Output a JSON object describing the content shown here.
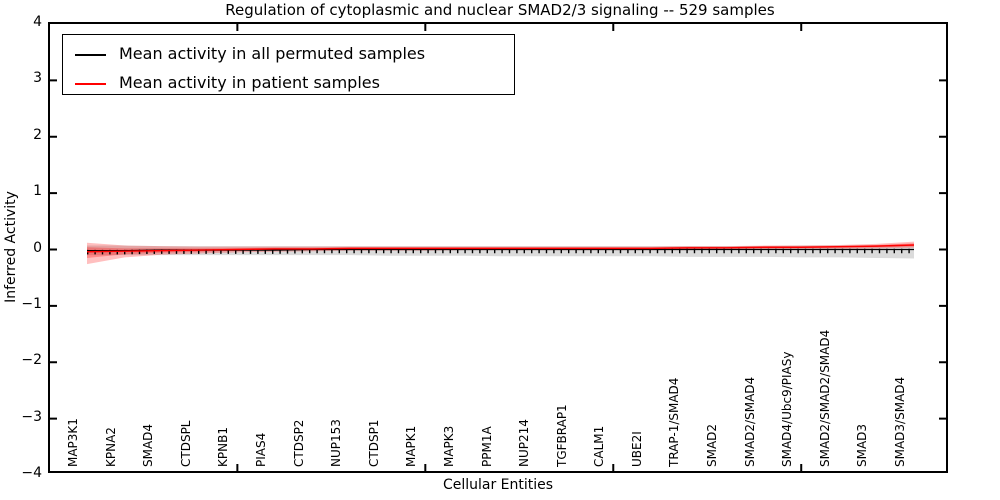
{
  "title": "Regulation of cytoplasmic and nuclear SMAD2/3 signaling -- 529 samples",
  "axes": {
    "ylabel": "Inferred Activity",
    "xlabel": "Cellular Entities",
    "ytick_labels": [
      "4",
      "3",
      "2",
      "1",
      "0",
      "−1",
      "−2",
      "−3",
      "−4"
    ],
    "ytick_values": [
      4,
      3,
      2,
      1,
      0,
      -1,
      -2,
      -3,
      -4
    ],
    "top_tick_indices": [
      4,
      9,
      14,
      19
    ]
  },
  "legend": {
    "items": [
      {
        "label": "Mean activity in all permuted samples",
        "color": "#000000"
      },
      {
        "label": "Mean activity in patient samples",
        "color": "#ff0000"
      }
    ]
  },
  "chart_data": {
    "type": "line",
    "title": "Regulation of cytoplasmic and nuclear SMAD2/3 signaling -- 529 samples",
    "xlabel": "Cellular Entities",
    "ylabel": "Inferred Activity",
    "ylim": [
      -4,
      4
    ],
    "grid": false,
    "legend_position": "upper left",
    "categories": [
      "MAP3K1",
      "KPNA2",
      "SMAD4",
      "CTDSPL",
      "KPNB1",
      "PIAS4",
      "CTDSP2",
      "NUP153",
      "CTDSP1",
      "MAPK1",
      "MAPK3",
      "PPM1A",
      "NUP214",
      "TGFBRAP1",
      "CALM1",
      "UBE2I",
      "TRAP-1/SMAD4",
      "SMAD2",
      "SMAD2/SMAD4",
      "SMAD4/Ubc9/PIASy",
      "SMAD2/SMAD2/SMAD4",
      "SMAD3",
      "SMAD3/SMAD4"
    ],
    "series": [
      {
        "name": "Mean activity in all permuted samples",
        "color": "#000000",
        "values": [
          -0.02,
          -0.02,
          -0.01,
          -0.01,
          -0.01,
          -0.01,
          0,
          0,
          0,
          0,
          0,
          0,
          0,
          0,
          0,
          0,
          0,
          0,
          0,
          0,
          0,
          0,
          0
        ]
      },
      {
        "name": "Mean activity in patient samples",
        "color": "#ff0000",
        "values": [
          -0.04,
          -0.03,
          -0.02,
          -0.01,
          0,
          0.01,
          0.01,
          0.02,
          0.02,
          0.02,
          0.02,
          0.02,
          0.02,
          0.02,
          0.02,
          0.02,
          0.03,
          0.03,
          0.04,
          0.04,
          0.05,
          0.06,
          0.08
        ]
      }
    ],
    "bands": [
      {
        "name": "permuted-samples-range",
        "color": "rgba(0,0,0,0.14)",
        "upper": [
          0.07,
          0.07,
          0.06,
          0.06,
          0.06,
          0.06,
          0.06,
          0.06,
          0.06,
          0.06,
          0.06,
          0.06,
          0.06,
          0.06,
          0.06,
          0.06,
          0.06,
          0.06,
          0.06,
          0.07,
          0.07,
          0.07,
          0.08
        ],
        "lower": [
          -0.1,
          -0.1,
          -0.1,
          -0.1,
          -0.1,
          -0.1,
          -0.1,
          -0.1,
          -0.11,
          -0.11,
          -0.11,
          -0.12,
          -0.12,
          -0.12,
          -0.12,
          -0.12,
          -0.13,
          -0.13,
          -0.13,
          -0.14,
          -0.14,
          -0.15,
          -0.16
        ]
      },
      {
        "name": "patient-samples-range",
        "color": "rgba(255,0,0,0.25)",
        "upper": [
          0.12,
          0.07,
          0.06,
          0.05,
          0.05,
          0.05,
          0.05,
          0.05,
          0.05,
          0.05,
          0.05,
          0.05,
          0.05,
          0.05,
          0.05,
          0.05,
          0.06,
          0.06,
          0.07,
          0.07,
          0.08,
          0.1,
          0.14
        ],
        "lower": [
          -0.26,
          -0.14,
          -0.09,
          -0.07,
          -0.05,
          -0.04,
          -0.03,
          -0.02,
          -0.02,
          -0.02,
          -0.01,
          -0.01,
          -0.01,
          -0.01,
          -0.01,
          -0.01,
          -0.01,
          0,
          0,
          0.01,
          0.01,
          0.02,
          0.03
        ]
      }
    ]
  }
}
